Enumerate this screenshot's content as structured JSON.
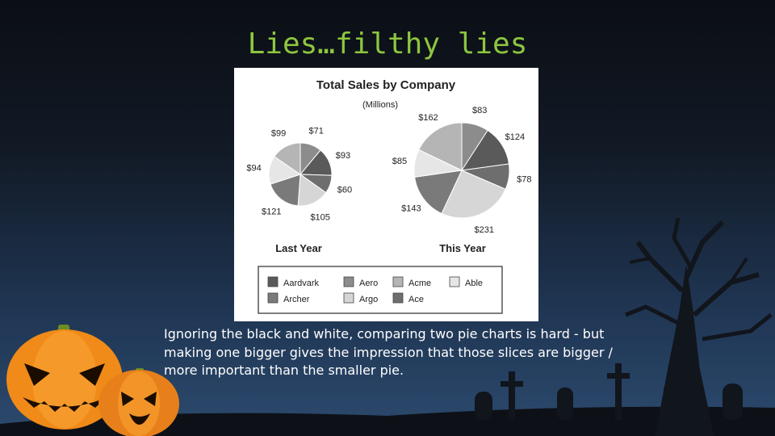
{
  "slide": {
    "title": "Lies…filthy lies",
    "caption": "Ignoring the black and white, comparing two pie charts is hard - but making one bigger gives the impression that those slices are bigger / more important than the smaller pie."
  },
  "colors": {
    "title": "#8dc63f",
    "caption": "#ffffff"
  },
  "chart_data": {
    "type": "pie",
    "title": "Total Sales by Company",
    "subtitle": "(Millions)",
    "legend": {
      "placement": "bottom",
      "entries": [
        {
          "name": "Aardvark",
          "color": "#5a5a5a"
        },
        {
          "name": "Aero",
          "color": "#8c8c8c"
        },
        {
          "name": "Acme",
          "color": "#b5b5b5"
        },
        {
          "name": "Able",
          "color": "#e6e6e6"
        },
        {
          "name": "Archer",
          "color": "#7a7a7a"
        },
        {
          "name": "Argo",
          "color": "#d6d6d6"
        },
        {
          "name": "Ace",
          "color": "#6e6e6e"
        }
      ]
    },
    "series": [
      {
        "name": "Last Year",
        "slices": [
          {
            "company": "Aero",
            "value": 71,
            "label": "$71"
          },
          {
            "company": "Aardvark",
            "value": 93,
            "label": "$93"
          },
          {
            "company": "Ace",
            "value": 60,
            "label": "$60"
          },
          {
            "company": "Argo",
            "value": 105,
            "label": "$105"
          },
          {
            "company": "Archer",
            "value": 121,
            "label": "$121"
          },
          {
            "company": "Able",
            "value": 94,
            "label": "$94"
          },
          {
            "company": "Acme",
            "value": 99,
            "label": "$99"
          }
        ]
      },
      {
        "name": "This Year",
        "slices": [
          {
            "company": "Aero",
            "value": 83,
            "label": "$83"
          },
          {
            "company": "Aardvark",
            "value": 124,
            "label": "$124"
          },
          {
            "company": "Ace",
            "value": 78,
            "label": "$78"
          },
          {
            "company": "Argo",
            "value": 231,
            "label": "$231"
          },
          {
            "company": "Archer",
            "value": 143,
            "label": "$143"
          },
          {
            "company": "Able",
            "value": 85,
            "label": "$85"
          },
          {
            "company": "Acme",
            "value": 162,
            "label": "$162"
          }
        ]
      }
    ]
  }
}
